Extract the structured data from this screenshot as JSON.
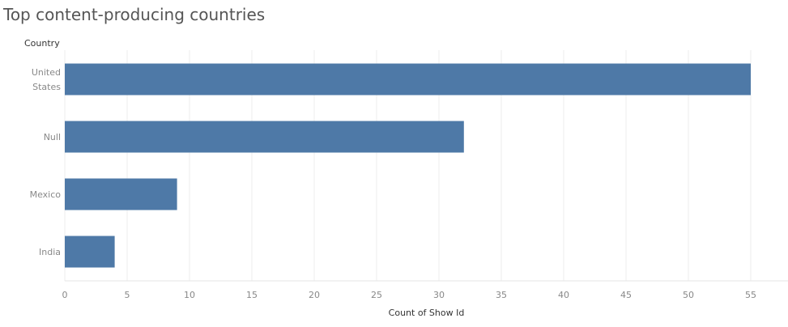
{
  "chart_data": {
    "type": "bar",
    "orientation": "horizontal",
    "title": "Top content-producing countries",
    "ylabel": "Country",
    "xlabel": "Count of Show Id",
    "categories": [
      "United States",
      "Null",
      "Mexico",
      "India"
    ],
    "values": [
      55,
      32,
      9,
      4
    ],
    "xlim": [
      0,
      58
    ],
    "xticks": [
      0,
      5,
      10,
      15,
      20,
      25,
      30,
      35,
      40,
      45,
      50,
      55
    ],
    "grid": true,
    "bar_color": "#4e79a7",
    "gridline_color": "#eeeeee"
  }
}
